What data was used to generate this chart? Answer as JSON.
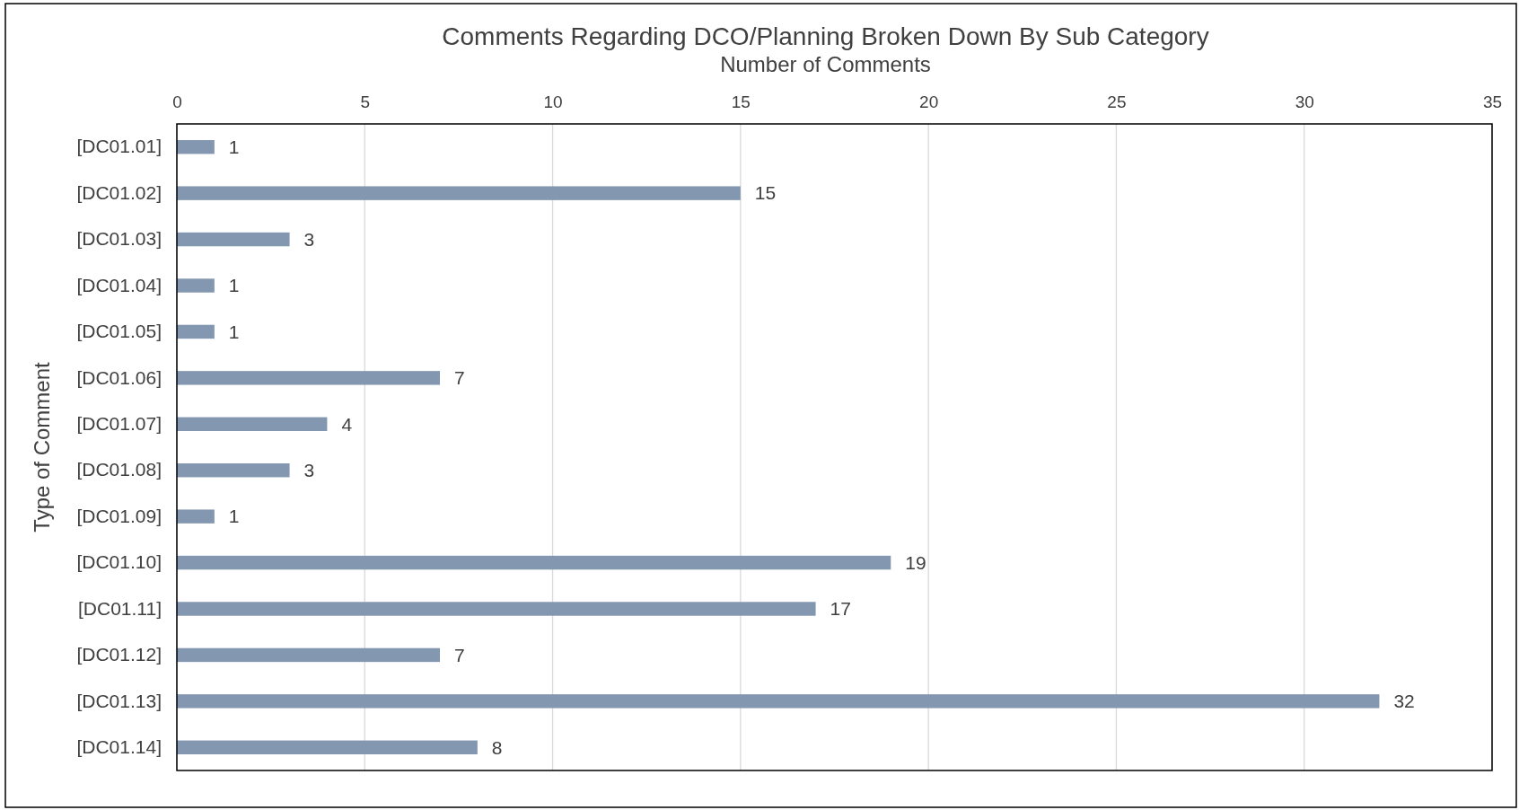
{
  "chart_data": {
    "type": "bar",
    "orientation": "horizontal",
    "title": "Comments Regarding DCO/Planning Broken Down By Sub Category",
    "xlabel": "Number of Comments",
    "ylabel": "Type of Comment",
    "categories": [
      "[DC01.01]",
      "[DC01.02]",
      "[DC01.03]",
      "[DC01.04]",
      "[DC01.05]",
      "[DC01.06]",
      "[DC01.07]",
      "[DC01.08]",
      "[DC01.09]",
      "[DC01.10]",
      "[DC01.11]",
      "[DC01.12]",
      "[DC01.13]",
      "[DC01.14]"
    ],
    "values": [
      1,
      15,
      3,
      1,
      1,
      7,
      4,
      3,
      1,
      19,
      17,
      7,
      32,
      8
    ],
    "color": "#8497b0",
    "xlim": [
      0,
      35
    ],
    "xticks": [
      0,
      5,
      10,
      15,
      20,
      25,
      30,
      35
    ],
    "grid": "x",
    "data_labels": true
  }
}
